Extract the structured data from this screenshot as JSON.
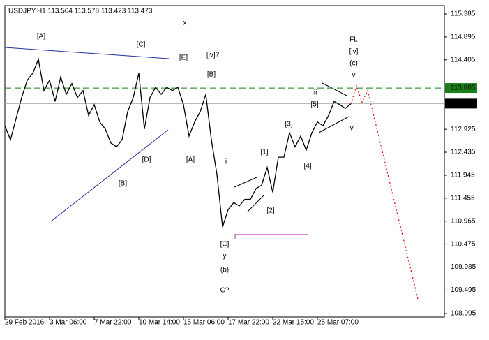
{
  "chart_data": {
    "type": "line",
    "title": "USDJPY,H1  113.564 113.578 113.423 113.473",
    "categories": [
      "29 Feb 2016",
      null,
      null,
      null,
      null,
      null,
      null,
      null,
      "3 Mar 06:00",
      null,
      null,
      null,
      null,
      null,
      null,
      null,
      "7 Mar 22:00",
      null,
      null,
      null,
      null,
      null,
      null,
      null,
      "10 Mar 14:00",
      null,
      null,
      null,
      null,
      null,
      null,
      null,
      "15 Mar 06:00",
      null,
      null,
      null,
      null,
      null,
      null,
      null,
      "17 Mar 22:00",
      null,
      null,
      null,
      null,
      null,
      null,
      null,
      "22 Mar 15:00",
      null,
      null,
      null,
      null,
      null,
      null,
      null,
      "25 Mar 07:00",
      null,
      null,
      null,
      null,
      null,
      null,
      null,
      null,
      null,
      null,
      null,
      null,
      null,
      null,
      null,
      null,
      null,
      null
    ],
    "series": [
      {
        "color": "#000000",
        "style": "solid",
        "values": [
          113.0,
          112.7,
          113.15,
          113.6,
          113.97,
          114.12,
          114.42,
          113.75,
          113.97,
          113.52,
          114.04,
          113.67,
          113.9,
          113.6,
          113.75,
          113.22,
          113.45,
          113.08,
          112.93,
          112.63,
          112.55,
          112.7,
          113.3,
          113.6,
          114.12,
          112.93,
          113.6,
          113.82,
          113.67,
          113.82,
          113.75,
          113.82,
          113.45,
          112.78,
          113.08,
          113.3,
          113.67,
          112.7,
          111.96,
          110.84,
          111.21,
          111.36,
          111.29,
          111.43,
          111.43,
          111.66,
          111.73,
          112.11,
          111.58,
          112.33,
          112.33,
          112.85,
          112.55,
          112.78,
          112.48,
          112.85,
          113.08,
          113.0,
          113.22,
          113.52,
          113.45,
          113.37,
          113.47,
          null,
          null,
          null,
          null,
          null,
          null,
          null,
          null,
          null,
          null,
          null,
          null
        ]
      },
      {
        "color": "#e00000",
        "style": "dotted",
        "values": [
          null,
          null,
          null,
          null,
          null,
          null,
          null,
          null,
          null,
          null,
          null,
          null,
          null,
          null,
          null,
          null,
          null,
          null,
          null,
          null,
          null,
          null,
          null,
          null,
          null,
          null,
          null,
          null,
          null,
          null,
          null,
          null,
          null,
          null,
          null,
          null,
          null,
          null,
          null,
          null,
          null,
          null,
          null,
          null,
          null,
          null,
          null,
          null,
          null,
          null,
          null,
          null,
          null,
          null,
          null,
          null,
          null,
          null,
          null,
          null,
          null,
          null,
          113.47,
          113.85,
          113.5,
          113.75,
          113.26,
          112.76,
          112.27,
          111.77,
          111.28,
          110.79,
          110.29,
          109.8,
          109.3
        ]
      }
    ],
    "ylim": [
      108.92,
      115.564
    ],
    "yticks": [
      115.385,
      114.895,
      114.405,
      112.925,
      112.435,
      111.945,
      111.455,
      110.965,
      110.475,
      109.985,
      109.495,
      108.995
    ],
    "hlines": [
      {
        "value": 113.805,
        "color": "#1a7f1a",
        "style": "dashed",
        "box": "#1a7f1a"
      },
      {
        "value": 113.473,
        "color": "#b0b0b0",
        "style": "solid",
        "box": "#000000"
      }
    ],
    "annotations": [
      {
        "text": "[A]",
        "color": "#1a8a1a"
      },
      {
        "text": "[C]",
        "color": "#1a8a1a"
      },
      {
        "text": "x",
        "color": "#a01010"
      },
      {
        "text": "[E]",
        "color": "#1a8a1a"
      },
      {
        "text": "[iv]?",
        "color": "#808080"
      },
      {
        "text": "[B]",
        "color": "#1a8a1a"
      },
      {
        "text": "FL",
        "color": "#1a1a80"
      },
      {
        "text": "[iv]",
        "color": "#1a8a1a"
      },
      {
        "text": "(c)",
        "color": "#1a1a80"
      },
      {
        "text": "v",
        "color": "#a01010"
      },
      {
        "text": "iii",
        "color": "#a01010"
      },
      {
        "text": "[5]",
        "color": "#1a8a1a"
      },
      {
        "text": "iv",
        "color": "#a01010"
      },
      {
        "text": "[3]",
        "color": "#1a8a1a"
      },
      {
        "text": "[1]",
        "color": "#1a8a1a"
      },
      {
        "text": "[4]",
        "color": "#1a8a1a"
      },
      {
        "text": "i",
        "color": "#a01010"
      },
      {
        "text": "[D]",
        "color": "#1a8a1a"
      },
      {
        "text": "[A]",
        "color": "#1a8a1a"
      },
      {
        "text": "[B]",
        "color": "#1a8a1a"
      },
      {
        "text": "[2]",
        "color": "#1a8a1a"
      },
      {
        "text": "ii",
        "color": "#c000c0"
      },
      {
        "text": "[C]",
        "color": "#1a8a1a"
      },
      {
        "text": "y",
        "color": "#a01010"
      },
      {
        "text": "(b)",
        "color": "#1a1a80"
      },
      {
        "text": "C?",
        "color": "#808080"
      }
    ]
  }
}
